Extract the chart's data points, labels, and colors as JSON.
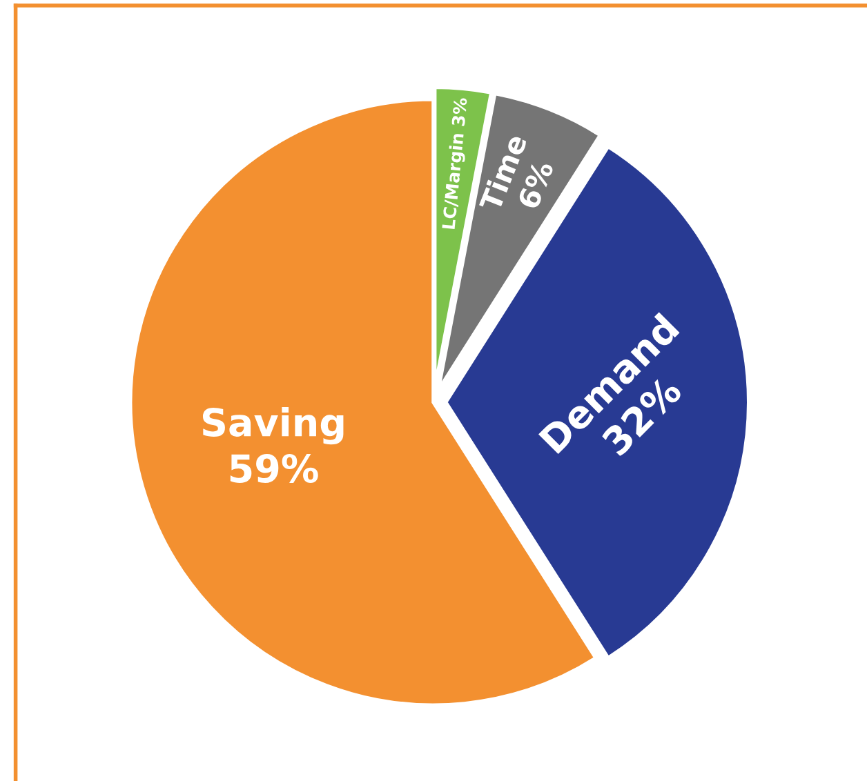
{
  "chart_data": {
    "type": "pie",
    "categories": [
      "LC/Margin",
      "Time",
      "Demand",
      "Saving"
    ],
    "values": [
      3,
      6,
      32,
      59
    ],
    "value_labels": [
      "3%",
      "6%",
      "32%",
      "59%"
    ],
    "colors": [
      "#7dc24b",
      "#757575",
      "#283a93",
      "#f39030"
    ]
  }
}
